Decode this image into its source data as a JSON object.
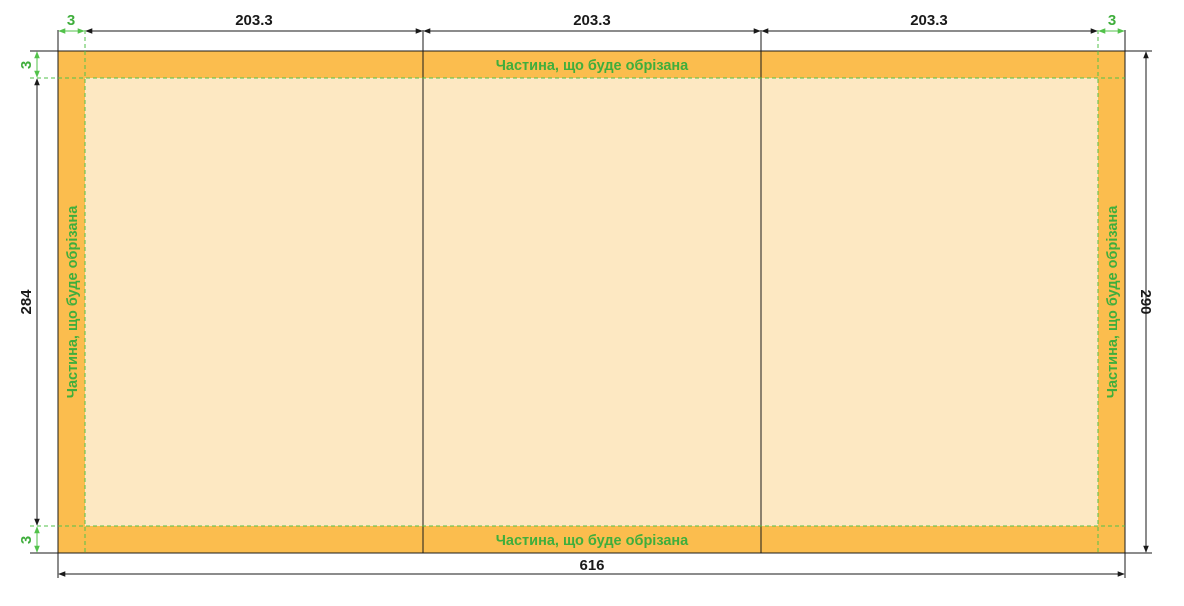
{
  "colors": {
    "bleed": "#fbbd4e",
    "safe": "#fde8c2",
    "guide": "#52c24a",
    "label": "#3fae3c",
    "line": "#1a1a1a"
  },
  "trim_label": "Частина, що буде обрізана",
  "dims": {
    "bleed_left": "3",
    "bleed_right": "3",
    "panel_1": "203.3",
    "panel_2": "203.3",
    "panel_3": "203.3",
    "bleed_top": "3",
    "bleed_bottom": "3",
    "inner_height": "284",
    "full_height": "290",
    "full_width": "616"
  }
}
